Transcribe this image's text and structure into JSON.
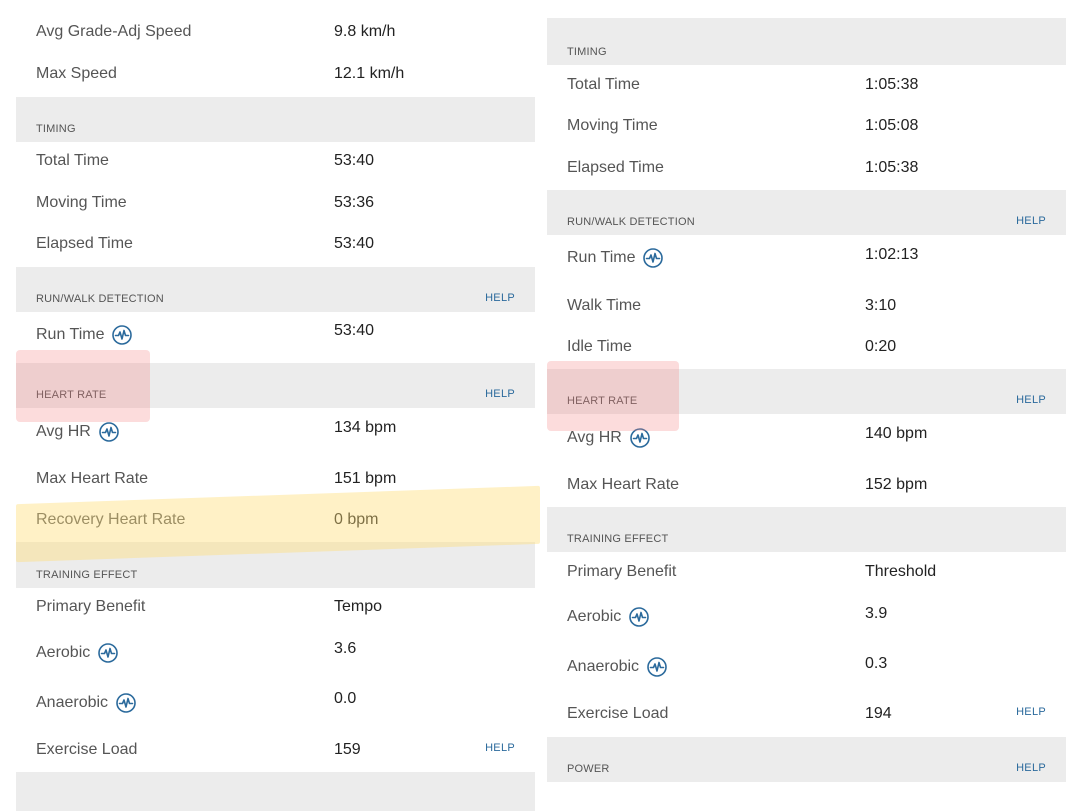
{
  "left": {
    "rows_top": [
      {
        "label": "Avg Grade-Adj Speed",
        "value": "9.8 km/h"
      },
      {
        "label": "Max Speed",
        "value": "12.1 km/h"
      }
    ],
    "timing": {
      "title": "TIMING",
      "rows": [
        {
          "label": "Total Time",
          "value": "53:40"
        },
        {
          "label": "Moving Time",
          "value": "53:36"
        },
        {
          "label": "Elapsed Time",
          "value": "53:40"
        }
      ]
    },
    "run_walk": {
      "title": "RUN/WALK DETECTION",
      "help": "HELP",
      "rows": [
        {
          "label": "Run Time",
          "value": "53:40",
          "icon": "activity-icon"
        }
      ]
    },
    "heart_rate": {
      "title": "HEART RATE",
      "help": "HELP",
      "rows": [
        {
          "label": "Avg HR",
          "value": "134 bpm",
          "icon": "activity-icon"
        },
        {
          "label": "Max Heart Rate",
          "value": "151 bpm"
        },
        {
          "label": "Recovery Heart Rate",
          "value": "0 bpm"
        }
      ]
    },
    "training_effect": {
      "title": "TRAINING EFFECT",
      "rows": [
        {
          "label": "Primary Benefit",
          "value": "Tempo"
        },
        {
          "label": "Aerobic",
          "value": "3.6",
          "icon": "activity-icon"
        },
        {
          "label": "Anaerobic",
          "value": "0.0",
          "icon": "activity-icon"
        },
        {
          "label": "Exercise Load",
          "value": "159",
          "help": "HELP"
        }
      ]
    }
  },
  "right": {
    "timing": {
      "title": "TIMING",
      "rows": [
        {
          "label": "Total Time",
          "value": "1:05:38"
        },
        {
          "label": "Moving Time",
          "value": "1:05:08"
        },
        {
          "label": "Elapsed Time",
          "value": "1:05:38"
        }
      ]
    },
    "run_walk": {
      "title": "RUN/WALK DETECTION",
      "help": "HELP",
      "rows": [
        {
          "label": "Run Time",
          "value": "1:02:13",
          "icon": "activity-icon"
        },
        {
          "label": "Walk Time",
          "value": "3:10"
        },
        {
          "label": "Idle Time",
          "value": "0:20"
        }
      ]
    },
    "heart_rate": {
      "title": "HEART RATE",
      "help": "HELP",
      "rows": [
        {
          "label": "Avg HR",
          "value": "140 bpm",
          "icon": "activity-icon"
        },
        {
          "label": "Max Heart Rate",
          "value": "152 bpm"
        }
      ]
    },
    "training_effect": {
      "title": "TRAINING EFFECT",
      "rows": [
        {
          "label": "Primary Benefit",
          "value": "Threshold"
        },
        {
          "label": "Aerobic",
          "value": "3.9",
          "icon": "activity-icon"
        },
        {
          "label": "Anaerobic",
          "value": "0.3",
          "icon": "activity-icon"
        },
        {
          "label": "Exercise Load",
          "value": "194",
          "help": "HELP"
        }
      ]
    },
    "power": {
      "title": "POWER",
      "help": "HELP"
    }
  },
  "colors": {
    "accent": "#2b6a9c",
    "header_bg": "#ececec",
    "yellow_highlight": "#ffdd78",
    "red_highlight": "#f48080"
  }
}
